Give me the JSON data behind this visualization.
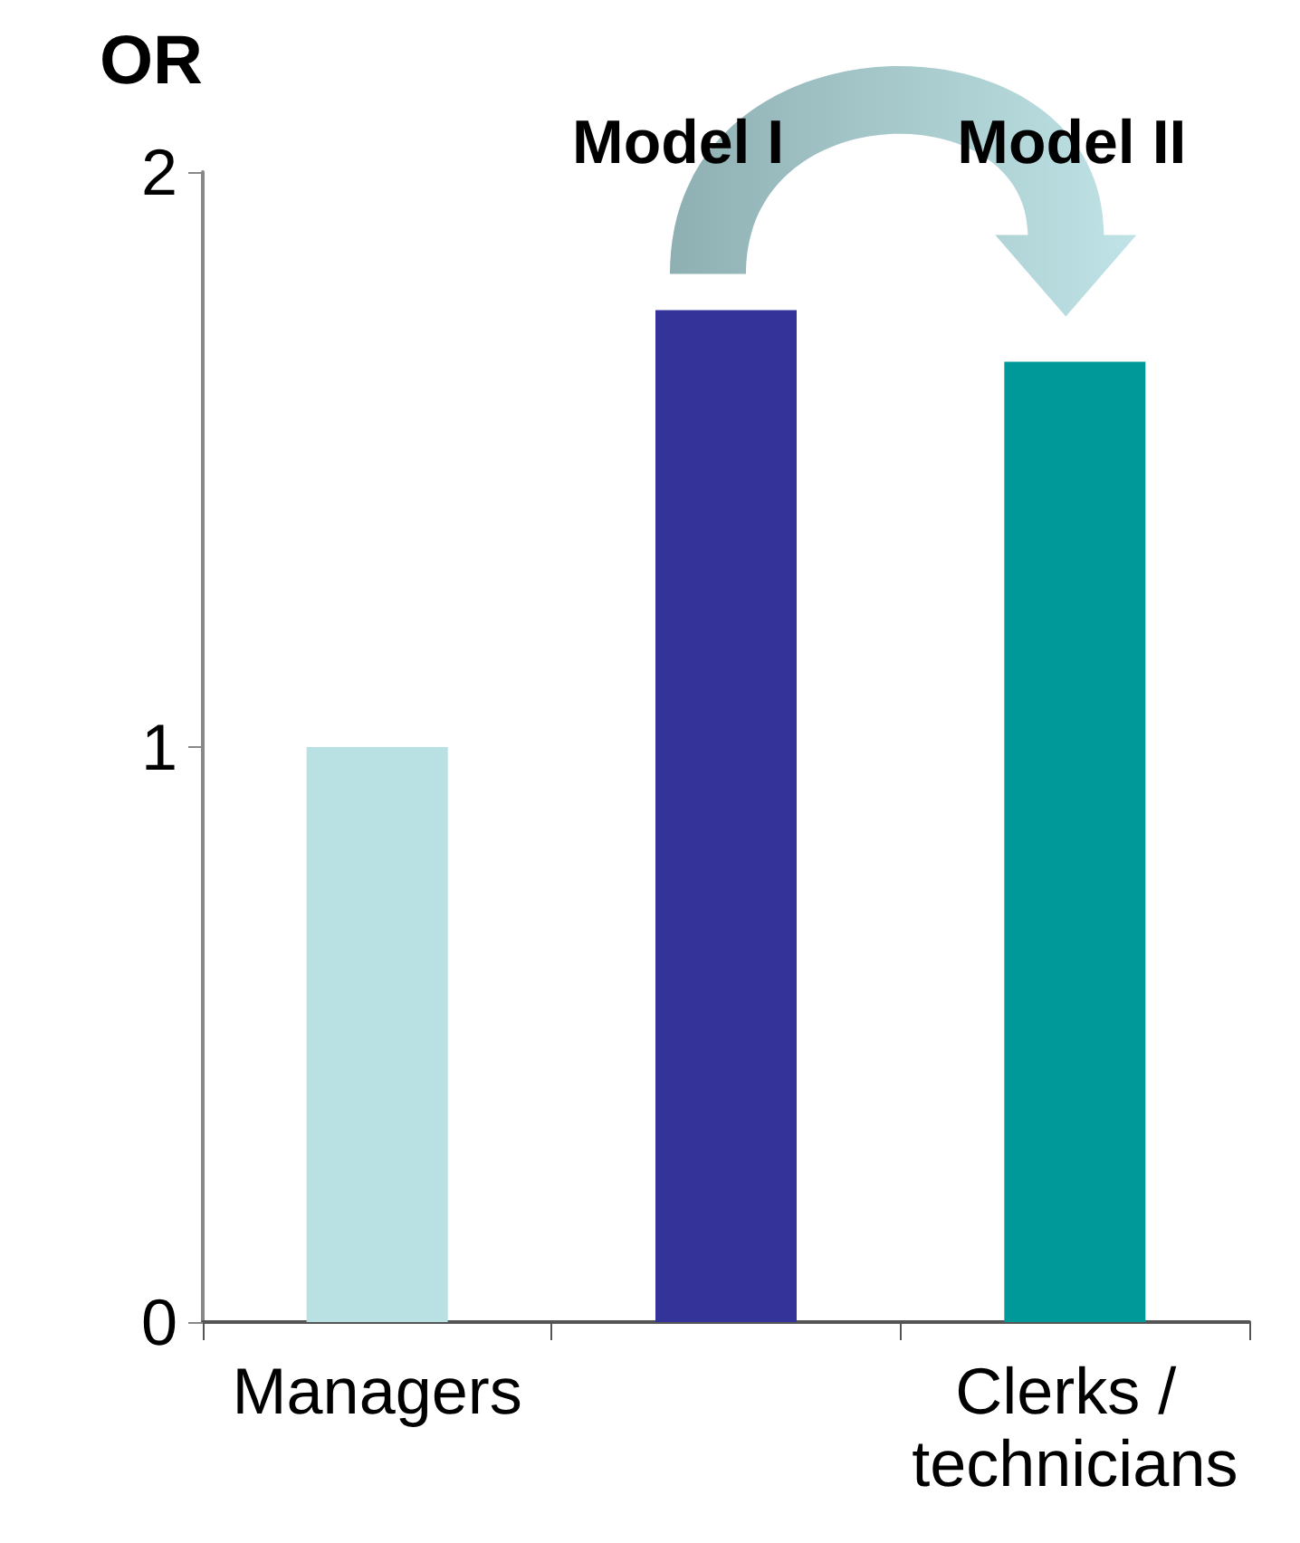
{
  "chart_data": {
    "type": "bar",
    "ylabel": "OR",
    "categories": [
      "Managers",
      null,
      "Clerks / technicians"
    ],
    "values": [
      1.0,
      1.76,
      1.67
    ],
    "colors": [
      "#b9e0e3",
      "#333399",
      "#009999"
    ],
    "ylim": [
      0,
      2
    ],
    "yticks": [
      0,
      1,
      2
    ],
    "grid": false,
    "annotations": [
      "Model I",
      "Model II"
    ]
  }
}
